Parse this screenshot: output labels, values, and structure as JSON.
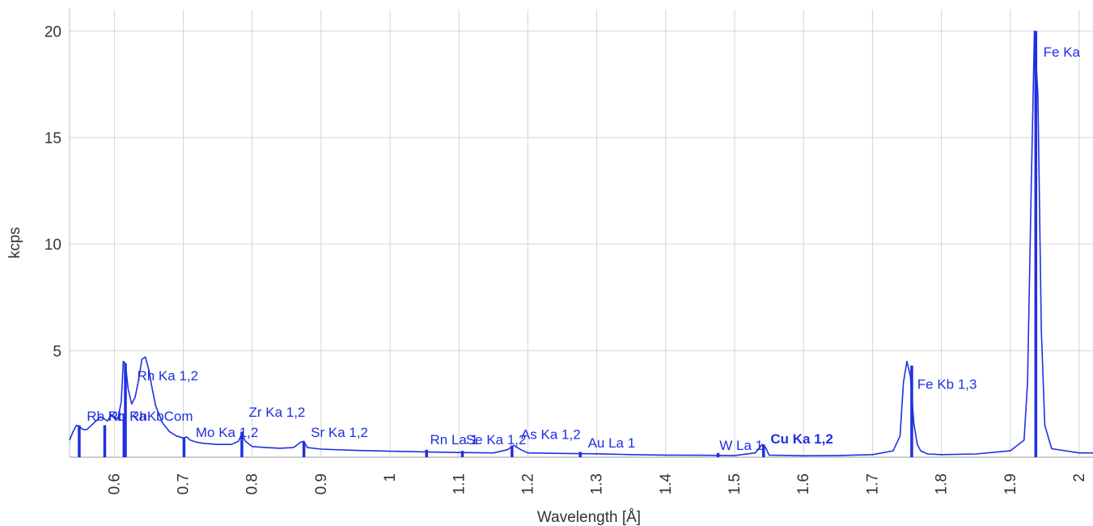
{
  "chart_data": {
    "type": "line",
    "title": "",
    "xlabel": "Wavelength [Å]",
    "ylabel": "kcps",
    "xlim": [
      0.535,
      2.02
    ],
    "ylim": [
      0,
      21
    ],
    "grid": true,
    "x_ticks": [
      0.6,
      0.7,
      0.8,
      0.9,
      1,
      1.1,
      1.2,
      1.3,
      1.4,
      1.5,
      1.6,
      1.7,
      1.8,
      1.9,
      2
    ],
    "x_tick_labels": [
      "0.6",
      "0.7",
      "0.8",
      "0.9",
      "1",
      "1.1",
      "1.2",
      "1.3",
      "1.4",
      "1.5",
      "1.6",
      "1.7",
      "1.8",
      "1.9",
      "2"
    ],
    "y_ticks": [
      5,
      10,
      15,
      20
    ],
    "y_tick_labels": [
      "5",
      "10",
      "15",
      "20"
    ],
    "line_color": "#1f2fe0",
    "series": [
      {
        "x": [
          0.535,
          0.54,
          0.545,
          0.55,
          0.555,
          0.56,
          0.57,
          0.58,
          0.585,
          0.59,
          0.595,
          0.6,
          0.605,
          0.61,
          0.613,
          0.616,
          0.62,
          0.625,
          0.63,
          0.635,
          0.64,
          0.645,
          0.65,
          0.655,
          0.66,
          0.67,
          0.68,
          0.69,
          0.7,
          0.705,
          0.71,
          0.72,
          0.73,
          0.75,
          0.77,
          0.78,
          0.785,
          0.79,
          0.8,
          0.82,
          0.84,
          0.86,
          0.87,
          0.875,
          0.88,
          0.9,
          0.95,
          1.0,
          1.05,
          1.1,
          1.15,
          1.17,
          1.18,
          1.19,
          1.2,
          1.25,
          1.3,
          1.35,
          1.4,
          1.45,
          1.5,
          1.53,
          1.54,
          1.545,
          1.55,
          1.6,
          1.65,
          1.7,
          1.73,
          1.74,
          1.745,
          1.75,
          1.755,
          1.76,
          1.765,
          1.77,
          1.78,
          1.8,
          1.85,
          1.9,
          1.92,
          1.925,
          1.93,
          1.935,
          1.94,
          1.945,
          1.95,
          1.96,
          2.0,
          2.02
        ],
        "y": [
          0.8,
          1.2,
          1.5,
          1.4,
          1.3,
          1.3,
          1.6,
          1.9,
          1.8,
          1.7,
          2.0,
          1.9,
          1.8,
          2.6,
          4.5,
          4.4,
          3.2,
          2.5,
          2.8,
          3.6,
          4.6,
          4.7,
          4.1,
          3.2,
          2.4,
          1.6,
          1.2,
          1.0,
          0.9,
          0.95,
          0.8,
          0.7,
          0.65,
          0.6,
          0.6,
          0.75,
          1.1,
          0.75,
          0.5,
          0.45,
          0.42,
          0.45,
          0.7,
          0.75,
          0.45,
          0.38,
          0.32,
          0.28,
          0.25,
          0.22,
          0.2,
          0.35,
          0.55,
          0.35,
          0.2,
          0.18,
          0.16,
          0.12,
          0.1,
          0.09,
          0.08,
          0.2,
          0.6,
          0.45,
          0.1,
          0.07,
          0.08,
          0.12,
          0.3,
          1.0,
          3.5,
          4.5,
          3.8,
          1.6,
          0.6,
          0.3,
          0.15,
          0.12,
          0.15,
          0.3,
          0.8,
          3.5,
          12.0,
          20.0,
          17.0,
          6.0,
          1.5,
          0.4,
          0.2,
          0.2
        ]
      }
    ],
    "peak_markers": [
      {
        "x": 0.549,
        "h": 1.5
      },
      {
        "x": 0.586,
        "h": 1.5
      },
      {
        "x": 0.614,
        "h": 2.0
      },
      {
        "x": 0.616,
        "h": 4.4
      },
      {
        "x": 0.701,
        "h": 0.9
      },
      {
        "x": 0.785,
        "h": 1.2
      },
      {
        "x": 0.875,
        "h": 0.7
      },
      {
        "x": 1.053,
        "h": 0.35
      },
      {
        "x": 1.105,
        "h": 0.3
      },
      {
        "x": 1.177,
        "h": 0.55
      },
      {
        "x": 1.276,
        "h": 0.25
      },
      {
        "x": 1.476,
        "h": 0.2
      },
      {
        "x": 1.542,
        "h": 0.6
      },
      {
        "x": 1.757,
        "h": 4.3
      },
      {
        "x": 1.937,
        "h": 20.0
      }
    ],
    "annotations": [
      {
        "text": "Rh Ka 1,2",
        "x": 0.633,
        "y": 3.6,
        "bold": false
      },
      {
        "text": "Rb Kb",
        "x": 0.56,
        "y": 1.7,
        "bold": false
      },
      {
        "text": "Rb Ka",
        "x": 0.591,
        "y": 1.7,
        "bold": false
      },
      {
        "text": "RhKbCom",
        "x": 0.622,
        "y": 1.7,
        "bold": false
      },
      {
        "text": "Zr Ka 1,2",
        "x": 0.795,
        "y": 1.9,
        "bold": false
      },
      {
        "text": "Mo Ka 1,2",
        "x": 0.718,
        "y": 0.95,
        "bold": false
      },
      {
        "text": "Sr Ka 1,2",
        "x": 0.885,
        "y": 0.95,
        "bold": false
      },
      {
        "text": "Rn La 1",
        "x": 1.058,
        "y": 0.6,
        "bold": false
      },
      {
        "text": "Se Ka 1,2",
        "x": 1.11,
        "y": 0.6,
        "bold": false
      },
      {
        "text": "As Ka 1,2",
        "x": 1.19,
        "y": 0.85,
        "bold": false
      },
      {
        "text": "Au La 1",
        "x": 1.287,
        "y": 0.45,
        "bold": false
      },
      {
        "text": "W La 1",
        "x": 1.478,
        "y": 0.35,
        "bold": false
      },
      {
        "text": "Cu Ka 1,2",
        "x": 1.552,
        "y": 0.65,
        "bold": true
      },
      {
        "text": "Fe Kb 1,3",
        "x": 1.765,
        "y": 3.2,
        "bold": false
      },
      {
        "text": "Fe Ka",
        "x": 1.948,
        "y": 18.8,
        "bold": false
      }
    ]
  }
}
